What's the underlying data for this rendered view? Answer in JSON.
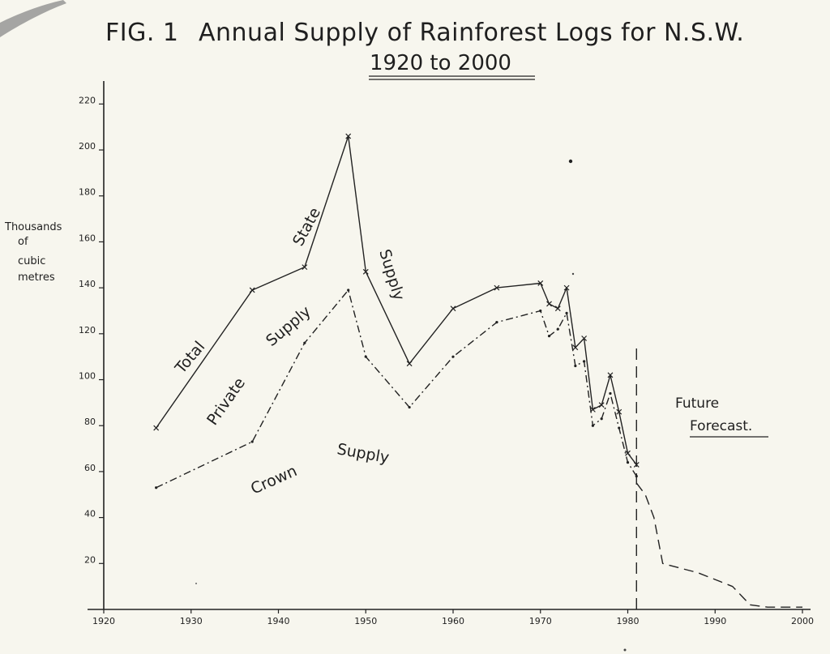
{
  "chart_data": {
    "type": "line",
    "title_fig": "FIG. 1",
    "title": "Annual Supply of Rainforest Logs for N.S.W.",
    "subtitle": "1920 to 2000",
    "ylabel_lines": [
      "Thousands",
      "of",
      "cubic",
      "metres"
    ],
    "xlim": [
      1920,
      2000
    ],
    "ylim": [
      0,
      230
    ],
    "x_ticks": [
      "1920",
      "1930",
      "1940",
      "1950",
      "1960",
      "1970",
      "1980",
      "1990",
      "2000"
    ],
    "y_ticks": [
      "20",
      "40",
      "60",
      "80",
      "100",
      "120",
      "140",
      "160",
      "180",
      "200",
      "220"
    ],
    "series": [
      {
        "style": "solid-x",
        "x": [
          1926,
          1937,
          1943,
          1948,
          1950,
          1955,
          1960,
          1965,
          1970,
          1971,
          1972,
          1973,
          1974,
          1975,
          1976,
          1977,
          1978,
          1979,
          1980,
          1981
        ],
        "values": [
          79,
          139,
          149,
          206,
          147,
          107,
          131,
          140,
          142,
          133,
          131,
          140,
          114,
          118,
          87,
          89,
          102,
          86,
          68,
          63
        ]
      },
      {
        "style": "dash-dot",
        "x": [
          1926,
          1937,
          1943,
          1948,
          1950,
          1955,
          1960,
          1965,
          1970,
          1971,
          1972,
          1973,
          1974,
          1975,
          1976,
          1977,
          1978,
          1979,
          1980,
          1981
        ],
        "values": [
          53,
          73,
          116,
          139,
          110,
          88,
          110,
          125,
          130,
          119,
          122,
          129,
          106,
          108,
          80,
          83,
          94,
          79,
          64,
          58
        ]
      },
      {
        "style": "dashed",
        "x": [
          1981,
          1982,
          1983,
          1984,
          1986,
          1988,
          1990,
          1992,
          1993,
          1994,
          1996,
          1998,
          2000
        ],
        "values": [
          55,
          50,
          40,
          20,
          18,
          16,
          13,
          10,
          6,
          2,
          1,
          1,
          1
        ]
      }
    ],
    "forecast_divider_x": 1981,
    "annotations": {
      "total": "Total",
      "state": "State",
      "supply_state": "Supply",
      "private": "Private",
      "supply_private": "Supply",
      "crown": "Crown",
      "supply_crown": "Supply",
      "future": "Future",
      "forecast": "Forecast."
    },
    "grid": false
  }
}
